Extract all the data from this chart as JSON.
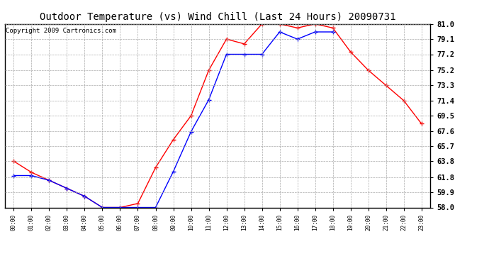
{
  "title": "Outdoor Temperature (vs) Wind Chill (Last 24 Hours) 20090731",
  "copyright_text": "Copyright 2009 Cartronics.com",
  "x_labels": [
    "00:00",
    "01:00",
    "02:00",
    "03:00",
    "04:00",
    "05:00",
    "06:00",
    "07:00",
    "08:00",
    "09:00",
    "10:00",
    "11:00",
    "12:00",
    "13:00",
    "14:00",
    "15:00",
    "16:00",
    "17:00",
    "18:00",
    "19:00",
    "20:00",
    "21:00",
    "22:00",
    "23:00"
  ],
  "temp_red": [
    63.8,
    62.4,
    61.4,
    60.4,
    59.4,
    58.0,
    58.0,
    58.5,
    63.0,
    66.5,
    69.5,
    75.2,
    79.1,
    78.5,
    81.0,
    81.0,
    80.5,
    81.0,
    80.5,
    77.5,
    75.2,
    73.3,
    71.4,
    68.5
  ],
  "wind_blue": [
    62.0,
    62.0,
    61.4,
    60.4,
    59.4,
    58.0,
    58.0,
    58.0,
    58.0,
    62.5,
    67.5,
    71.5,
    77.2,
    77.2,
    77.2,
    80.0,
    79.1,
    80.0,
    80.0,
    null,
    null,
    null,
    null,
    null
  ],
  "y_ticks": [
    58.0,
    59.9,
    61.8,
    63.8,
    65.7,
    67.6,
    69.5,
    71.4,
    73.3,
    75.2,
    77.2,
    79.1,
    81.0
  ],
  "y_min": 58.0,
  "y_max": 81.0,
  "line_color_red": "#FF0000",
  "line_color_blue": "#0000FF",
  "background_color": "#FFFFFF",
  "grid_color": "#AAAAAA",
  "title_fontsize": 10,
  "copyright_fontsize": 6.5,
  "figwidth": 6.9,
  "figheight": 3.75,
  "dpi": 100
}
